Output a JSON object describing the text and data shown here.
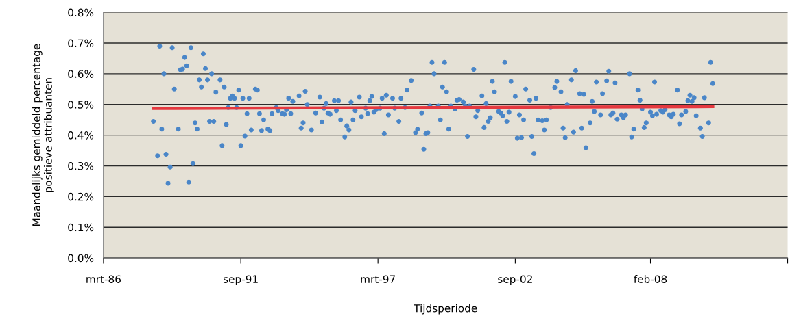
{
  "chart_data": {
    "type": "scatter",
    "xlabel": "Tijdsperiode",
    "ylabel": "Maandelijks gemiddeld percentage\npositieve attribuanten",
    "xlim": [
      "1986-03",
      "2013-08"
    ],
    "xticks": [
      {
        "value": "1986-03",
        "label": "mrt-86"
      },
      {
        "value": "1991-09",
        "label": "sep-91"
      },
      {
        "value": "1997-03",
        "label": "mrt-97"
      },
      {
        "value": "2002-09",
        "label": "sep-02"
      },
      {
        "value": "2008-02",
        "label": "feb-08"
      },
      {
        "value": "2013-08",
        "label": null
      }
    ],
    "ylim": [
      0,
      0.8
    ],
    "yticks": [
      {
        "value": 0,
        "label": "0.0%"
      },
      {
        "value": 0.1,
        "label": "0.1%"
      },
      {
        "value": 0.2,
        "label": "0.2%"
      },
      {
        "value": 0.3,
        "label": "0.3%"
      },
      {
        "value": 0.4,
        "label": "0.4%"
      },
      {
        "value": 0.5,
        "label": "0.5%"
      },
      {
        "value": 0.6,
        "label": "0.6%"
      },
      {
        "value": 0.7,
        "label": "0.7%"
      },
      {
        "value": 0.8,
        "label": "0.8%"
      }
    ],
    "grid": "y",
    "legend": false,
    "series": [
      {
        "color": "#4a86c8",
        "marker": "circle",
        "x": [
          "1988-03",
          "1988-05",
          "1988-06",
          "1988-07",
          "1988-08",
          "1988-09",
          "1988-10",
          "1988-11",
          "1988-12",
          "1989-01",
          "1989-03",
          "1989-04",
          "1989-05",
          "1989-06",
          "1989-07",
          "1989-08",
          "1989-09",
          "1989-10",
          "1989-11",
          "1989-12",
          "1990-01",
          "1990-02",
          "1990-03",
          "1990-04",
          "1990-05",
          "1990-06",
          "1990-07",
          "1990-08",
          "1990-09",
          "1990-11",
          "1990-12",
          "1991-01",
          "1991-02",
          "1991-03",
          "1991-04",
          "1991-05",
          "1991-06",
          "1991-07",
          "1991-08",
          "1991-09",
          "1991-10",
          "1991-11",
          "1991-12",
          "1992-01",
          "1992-02",
          "1992-04",
          "1992-05",
          "1992-06",
          "1992-07",
          "1992-08",
          "1992-10",
          "1992-11",
          "1992-12",
          "1993-02",
          "1993-03",
          "1993-05",
          "1993-06",
          "1993-07",
          "1993-08",
          "1993-09",
          "1993-10",
          "1994-01",
          "1994-02",
          "1994-03",
          "1994-04",
          "1994-05",
          "1994-07",
          "1994-09",
          "1994-11",
          "1994-12",
          "1995-01",
          "1995-02",
          "1995-03",
          "1995-04",
          "1995-06",
          "1995-07",
          "1995-08",
          "1995-09",
          "1995-11",
          "1995-12",
          "1996-01",
          "1996-02",
          "1996-03",
          "1996-04",
          "1996-06",
          "1996-07",
          "1996-09",
          "1996-10",
          "1996-11",
          "1996-12",
          "1997-01",
          "1997-02",
          "1997-04",
          "1997-05",
          "1997-06",
          "1997-07",
          "1997-08",
          "1997-10",
          "1997-11",
          "1998-01",
          "1998-02",
          "1998-04",
          "1998-05",
          "1998-07",
          "1998-09",
          "1998-10",
          "1998-12",
          "1999-01",
          "1999-02",
          "1999-03",
          "1999-04",
          "1999-05",
          "1999-06",
          "1999-08",
          "1999-09",
          "1999-10",
          "1999-11",
          "1999-12",
          "2000-01",
          "2000-02",
          "2000-04",
          "2000-05",
          "2000-06",
          "2000-08",
          "2000-09",
          "2000-10",
          "2000-11",
          "2001-01",
          "2001-02",
          "2001-03",
          "2001-05",
          "2001-06",
          "2001-07",
          "2001-08",
          "2001-09",
          "2001-10",
          "2001-11",
          "2002-01",
          "2002-02",
          "2002-03",
          "2002-04",
          "2002-05",
          "2002-06",
          "2002-07",
          "2002-09",
          "2002-10",
          "2002-11",
          "2002-12",
          "2003-01",
          "2003-02",
          "2003-04",
          "2003-05",
          "2003-06",
          "2003-07",
          "2003-08",
          "2003-10",
          "2003-11",
          "2003-12",
          "2004-02",
          "2004-04",
          "2004-05",
          "2004-07",
          "2004-08",
          "2004-09",
          "2004-10",
          "2004-12",
          "2005-01",
          "2005-02",
          "2005-04",
          "2005-05",
          "2005-06",
          "2005-07",
          "2005-09",
          "2005-10",
          "2005-11",
          "2005-12",
          "2006-02",
          "2006-03",
          "2006-05",
          "2006-06",
          "2006-07",
          "2006-08",
          "2006-09",
          "2006-10",
          "2006-12",
          "2007-01",
          "2007-02",
          "2007-04",
          "2007-05",
          "2007-06",
          "2007-08",
          "2007-09",
          "2007-10",
          "2007-11",
          "2007-12",
          "2008-02",
          "2008-03",
          "2008-04",
          "2008-05",
          "2008-07",
          "2008-08",
          "2008-09",
          "2008-11",
          "2008-12",
          "2009-01",
          "2009-03",
          "2009-04",
          "2009-05",
          "2009-07",
          "2009-08",
          "2009-09",
          "2009-10",
          "2009-11",
          "2009-12",
          "2010-02",
          "2010-03",
          "2010-04",
          "2010-06",
          "2010-07",
          "2010-08"
        ],
        "values": [
          0.445,
          0.333,
          0.69,
          0.42,
          0.6,
          0.338,
          0.243,
          0.296,
          0.685,
          0.55,
          0.42,
          0.613,
          0.615,
          0.653,
          0.626,
          0.247,
          0.685,
          0.307,
          0.44,
          0.42,
          0.58,
          0.557,
          0.665,
          0.617,
          0.58,
          0.445,
          0.6,
          0.445,
          0.54,
          0.58,
          0.366,
          0.557,
          0.435,
          0.49,
          0.52,
          0.528,
          0.52,
          0.49,
          0.547,
          0.366,
          0.52,
          0.397,
          0.47,
          0.52,
          0.417,
          0.55,
          0.547,
          0.47,
          0.415,
          0.45,
          0.42,
          0.415,
          0.47,
          0.49,
          0.48,
          0.47,
          0.468,
          0.483,
          0.52,
          0.47,
          0.51,
          0.528,
          0.423,
          0.44,
          0.543,
          0.5,
          0.417,
          0.472,
          0.524,
          0.443,
          0.488,
          0.503,
          0.472,
          0.468,
          0.512,
          0.48,
          0.512,
          0.45,
          0.394,
          0.43,
          0.417,
          0.508,
          0.45,
          0.48,
          0.524,
          0.46,
          0.488,
          0.47,
          0.512,
          0.526,
          0.475,
          0.483,
          0.488,
          0.52,
          0.405,
          0.53,
          0.466,
          0.52,
          0.488,
          0.445,
          0.52,
          0.49,
          0.547,
          0.578,
          0.408,
          0.42,
          0.472,
          0.354,
          0.405,
          0.408,
          0.495,
          0.637,
          0.6,
          0.495,
          0.45,
          0.557,
          0.637,
          0.541,
          0.42,
          0.495,
          0.485,
          0.514,
          0.516,
          0.508,
          0.495,
          0.396,
          0.495,
          0.614,
          0.46,
          0.48,
          0.528,
          0.425,
          0.503,
          0.445,
          0.457,
          0.575,
          0.541,
          0.477,
          0.472,
          0.463,
          0.637,
          0.445,
          0.475,
          0.575,
          0.526,
          0.39,
          0.466,
          0.392,
          0.45,
          0.55,
          0.514,
          0.396,
          0.34,
          0.52,
          0.45,
          0.447,
          0.417,
          0.45,
          0.49,
          0.555,
          0.575,
          0.541,
          0.423,
          0.392,
          0.5,
          0.58,
          0.41,
          0.61,
          0.535,
          0.423,
          0.533,
          0.359,
          0.44,
          0.51,
          0.477,
          0.573,
          0.466,
          0.535,
          0.577,
          0.608,
          0.466,
          0.472,
          0.57,
          0.452,
          0.466,
          0.457,
          0.466,
          0.6,
          0.394,
          0.42,
          0.547,
          0.514,
          0.485,
          0.425,
          0.44,
          0.475,
          0.463,
          0.573,
          0.468,
          0.48,
          0.475,
          0.483,
          0.466,
          0.46,
          0.468,
          0.547,
          0.437,
          0.466,
          0.477,
          0.512,
          0.53,
          0.51,
          0.522,
          0.463,
          0.423,
          0.396,
          0.522,
          0.44,
          0.637,
          0.568
        ]
      },
      {
        "type": "line",
        "marker": "none",
        "color": "#e5383f",
        "x": [
          "1988-03",
          "2010-08"
        ],
        "values": [
          0.487,
          0.493
        ]
      }
    ]
  }
}
